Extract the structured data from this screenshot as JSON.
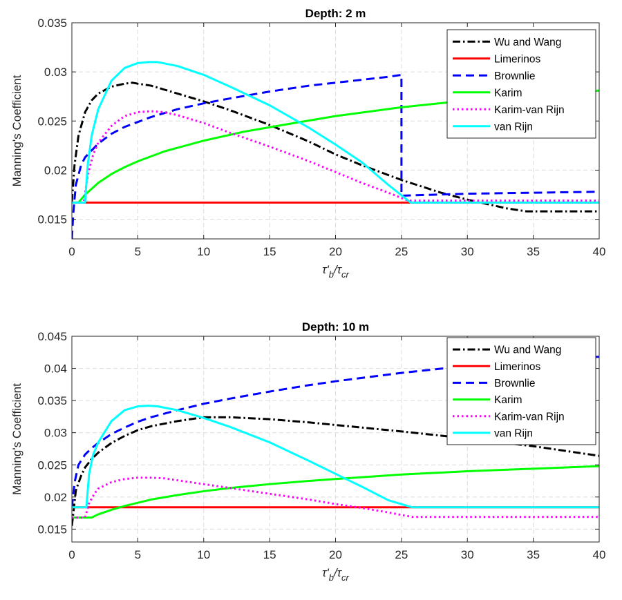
{
  "chart_data": [
    {
      "type": "line",
      "title": "Depth: 2 m",
      "xlabel_main": "τ'",
      "xlabel_sub1": "b",
      "xlabel_mid": "/τ",
      "xlabel_sub2": "cr",
      "ylabel": "Manning's Coefficient",
      "xlim": [
        0,
        40
      ],
      "ylim": [
        0.013,
        0.035
      ],
      "xticks": [
        0,
        5,
        10,
        15,
        20,
        25,
        30,
        35,
        40
      ],
      "yticks": [
        0.015,
        0.02,
        0.025,
        0.03,
        0.035
      ],
      "ytick_labels": [
        "0.015",
        "0.02",
        "0.025",
        "0.03",
        "0.035"
      ],
      "grid": true,
      "legend_position": "top-right",
      "series": [
        {
          "name": "Wu and Wang",
          "color": "#000000",
          "dash": "dashdot",
          "x": [
            0,
            0.2,
            0.5,
            1,
            1.5,
            2,
            3,
            4,
            4.6,
            5,
            6,
            7,
            8,
            10,
            12,
            15,
            18,
            20,
            22,
            25,
            28,
            30,
            33,
            34.5,
            35,
            40
          ],
          "y": [
            0.0168,
            0.0205,
            0.0235,
            0.0259,
            0.0271,
            0.0278,
            0.0285,
            0.0288,
            0.0289,
            0.0288,
            0.0286,
            0.0282,
            0.0278,
            0.027,
            0.0261,
            0.0246,
            0.0229,
            0.0216,
            0.0205,
            0.019,
            0.0177,
            0.017,
            0.0161,
            0.0158,
            0.0158,
            0.0158
          ]
        },
        {
          "name": "Limerinos",
          "color": "#ff0000",
          "dash": "solid",
          "x": [
            0,
            40
          ],
          "y": [
            0.0167,
            0.0167
          ]
        },
        {
          "name": "Brownlie",
          "color": "#0000ff",
          "dash": "dashed",
          "x": [
            0,
            0.1,
            0.3,
            0.7,
            1,
            1.5,
            2,
            3,
            4,
            5,
            6,
            8,
            10,
            12,
            15,
            18,
            20,
            22,
            24,
            25,
            25.001,
            30,
            35,
            40
          ],
          "y": [
            0.013,
            0.0155,
            0.0185,
            0.0205,
            0.0213,
            0.022,
            0.0227,
            0.0237,
            0.0244,
            0.0249,
            0.0254,
            0.0262,
            0.0268,
            0.0273,
            0.028,
            0.0286,
            0.0289,
            0.0292,
            0.0295,
            0.0297,
            0.0174,
            0.0176,
            0.0177,
            0.0178
          ]
        },
        {
          "name": "Karim",
          "color": "#00ff00",
          "dash": "solid",
          "x": [
            0,
            0.5,
            1,
            2,
            3,
            4,
            5,
            7,
            10,
            13,
            16,
            20,
            25,
            30,
            35,
            40
          ],
          "y": [
            0.0167,
            0.0167,
            0.0175,
            0.0187,
            0.0196,
            0.0203,
            0.0209,
            0.0219,
            0.023,
            0.0239,
            0.0246,
            0.0255,
            0.0264,
            0.0271,
            0.0276,
            0.0281
          ]
        },
        {
          "name": "Karim-van Rijn",
          "color": "#ff00ff",
          "dash": "dotted",
          "x": [
            0,
            0.9,
            1.2,
            1.6,
            2,
            3,
            4,
            5,
            6,
            7,
            8,
            10,
            12,
            15,
            18,
            20,
            22,
            24,
            25.5,
            26,
            30,
            40
          ],
          "y": [
            0.0167,
            0.0167,
            0.0195,
            0.0215,
            0.0228,
            0.0245,
            0.0255,
            0.0259,
            0.026,
            0.0259,
            0.0256,
            0.0248,
            0.0238,
            0.0224,
            0.0209,
            0.0198,
            0.0187,
            0.0177,
            0.0169,
            0.0169,
            0.0169,
            0.0169
          ]
        },
        {
          "name": "van Rijn",
          "color": "#00ffff",
          "dash": "solid",
          "x": [
            0,
            1,
            1.2,
            1.5,
            2,
            3,
            4,
            5,
            5.8,
            6.5,
            8,
            10,
            12,
            15,
            18,
            20,
            22,
            24,
            25.7,
            26,
            30,
            40
          ],
          "y": [
            0.0167,
            0.0167,
            0.0205,
            0.0235,
            0.0262,
            0.0291,
            0.0304,
            0.0309,
            0.031,
            0.031,
            0.0306,
            0.0297,
            0.0285,
            0.0266,
            0.0243,
            0.0226,
            0.0208,
            0.0185,
            0.0167,
            0.0167,
            0.0167,
            0.0167
          ]
        }
      ]
    },
    {
      "type": "line",
      "title": "Depth: 10 m",
      "xlabel_main": "τ'",
      "xlabel_sub1": "b",
      "xlabel_mid": "/τ",
      "xlabel_sub2": "cr",
      "ylabel": "Manning's Coefficient",
      "xlim": [
        0,
        40
      ],
      "ylim": [
        0.013,
        0.045
      ],
      "xticks": [
        0,
        5,
        10,
        15,
        20,
        25,
        30,
        35,
        40
      ],
      "yticks": [
        0.015,
        0.02,
        0.025,
        0.03,
        0.035,
        0.04,
        0.045
      ],
      "ytick_labels": [
        "0.015",
        "0.02",
        "0.025",
        "0.03",
        "0.035",
        "0.04",
        "0.045"
      ],
      "grid": true,
      "legend_position": "top-right",
      "series": [
        {
          "name": "Wu and Wang",
          "color": "#000000",
          "dash": "dashdot",
          "x": [
            0,
            0.3,
            0.7,
            1,
            1.5,
            2,
            3,
            4,
            5,
            6,
            8,
            10,
            12,
            15,
            18,
            20,
            25,
            30,
            35,
            40
          ],
          "y": [
            0.0155,
            0.021,
            0.0233,
            0.0246,
            0.0259,
            0.0269,
            0.0284,
            0.0295,
            0.0304,
            0.031,
            0.0318,
            0.0324,
            0.0324,
            0.0321,
            0.0316,
            0.0312,
            0.0302,
            0.0291,
            0.0279,
            0.0264
          ]
        },
        {
          "name": "Limerinos",
          "color": "#ff0000",
          "dash": "solid",
          "x": [
            0,
            40
          ],
          "y": [
            0.0184,
            0.0184
          ]
        },
        {
          "name": "Brownlie",
          "color": "#0000ff",
          "dash": "dashed",
          "x": [
            0,
            0.2,
            0.5,
            1,
            1.5,
            2,
            3,
            4,
            5,
            6,
            8,
            10,
            12,
            15,
            18,
            20,
            25,
            30,
            35,
            38,
            40
          ],
          "y": [
            0.0184,
            0.0222,
            0.025,
            0.0266,
            0.0276,
            0.0284,
            0.0298,
            0.0308,
            0.0317,
            0.0324,
            0.0335,
            0.0345,
            0.0353,
            0.0364,
            0.0374,
            0.038,
            0.0393,
            0.0404,
            0.0412,
            0.0416,
            0.0418
          ]
        },
        {
          "name": "Karim",
          "color": "#00ff00",
          "dash": "solid",
          "x": [
            0,
            1.5,
            2,
            3,
            4,
            5,
            6,
            8,
            10,
            12,
            15,
            18,
            20,
            25,
            30,
            35,
            40
          ],
          "y": [
            0.0168,
            0.0168,
            0.0173,
            0.018,
            0.0186,
            0.0191,
            0.0196,
            0.0203,
            0.0209,
            0.0214,
            0.022,
            0.0225,
            0.0228,
            0.0235,
            0.024,
            0.0244,
            0.0248
          ]
        },
        {
          "name": "Karim-van Rijn",
          "color": "#ff00ff",
          "dash": "dotted",
          "x": [
            0,
            1,
            1.3,
            1.7,
            2,
            3,
            4,
            5,
            6,
            7,
            8,
            10,
            12,
            15,
            18,
            20,
            22,
            24,
            25.8,
            26,
            30,
            40
          ],
          "y": [
            0.0168,
            0.0168,
            0.019,
            0.0205,
            0.0213,
            0.0223,
            0.0228,
            0.023,
            0.023,
            0.0229,
            0.0226,
            0.022,
            0.0214,
            0.0205,
            0.0196,
            0.0189,
            0.0183,
            0.0176,
            0.0169,
            0.0169,
            0.0169,
            0.0169
          ]
        },
        {
          "name": "van Rijn",
          "color": "#00ffff",
          "dash": "solid",
          "x": [
            0,
            1.1,
            1.3,
            1.6,
            2,
            3,
            4,
            5,
            5.8,
            6.5,
            8,
            10,
            12,
            15,
            18,
            20,
            22,
            24,
            25.8,
            26,
            30,
            40
          ],
          "y": [
            0.0184,
            0.0184,
            0.0235,
            0.0265,
            0.0285,
            0.0318,
            0.0335,
            0.0341,
            0.0342,
            0.0341,
            0.0335,
            0.0323,
            0.0309,
            0.0285,
            0.0256,
            0.0236,
            0.0216,
            0.0195,
            0.0184,
            0.0184,
            0.0184,
            0.0184
          ]
        }
      ]
    }
  ]
}
